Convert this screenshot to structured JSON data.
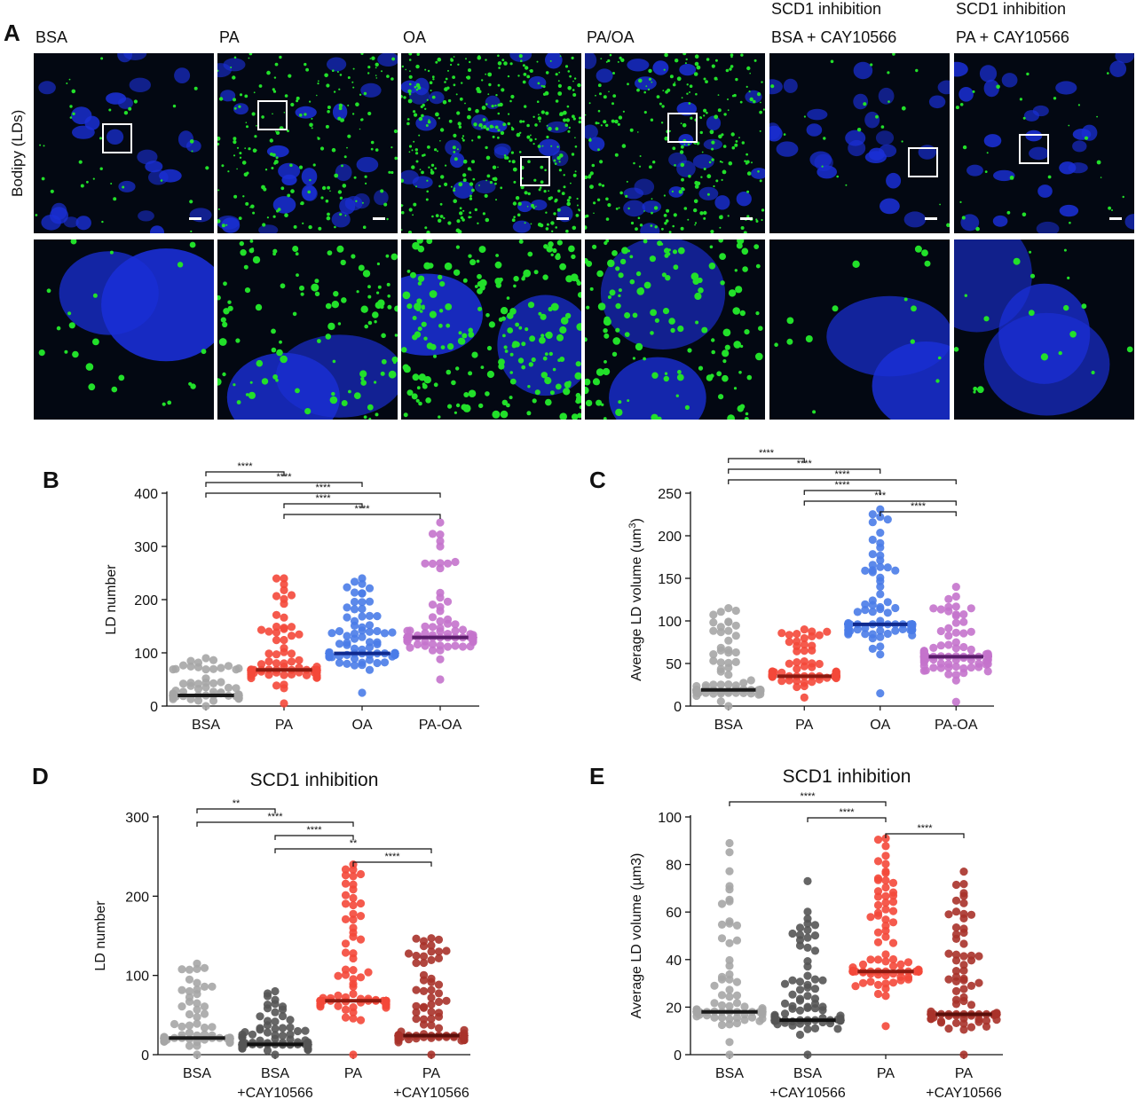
{
  "panel_A": {
    "letter": "A",
    "row_label": "Bodipy (LDs)",
    "columns": [
      {
        "line1": "",
        "line2": "BSA",
        "density": 0.08,
        "roi": [
          0.38,
          0.39
        ]
      },
      {
        "line1": "",
        "line2": "PA",
        "density": 0.45,
        "roi": [
          0.22,
          0.26
        ]
      },
      {
        "line1": "",
        "line2": "OA",
        "density": 0.9,
        "roi": [
          0.66,
          0.57
        ]
      },
      {
        "line1": "",
        "line2": "PA/OA",
        "density": 0.6,
        "roi": [
          0.46,
          0.33
        ]
      },
      {
        "line1": "SCD1 inhibition",
        "line2": "BSA + CAY10566",
        "density": 0.05,
        "roi": [
          0.77,
          0.52
        ]
      },
      {
        "line1": "SCD1 inhibition",
        "line2": "PA + CAY10566",
        "density": 0.07,
        "roi": [
          0.36,
          0.45
        ]
      }
    ],
    "colors": {
      "nucleus": "#1a2fd6",
      "lipid": "#22e02a",
      "background": "#030812"
    }
  },
  "chart_data": [
    {
      "panel": "B",
      "type": "scatter",
      "title": "",
      "ylabel": "LD number",
      "ylim": [
        0,
        400
      ],
      "yticks": [
        0,
        100,
        200,
        300,
        400
      ],
      "categories": [
        "BSA",
        "PA",
        "OA",
        "PA-OA"
      ],
      "series": [
        {
          "mean": 20,
          "min": 0,
          "max": 90,
          "n": 90,
          "color": "#a6a6a6",
          "bar_color": "#1a1a1a"
        },
        {
          "mean": 68,
          "min": 5,
          "max": 240,
          "n": 90,
          "color": "#f4483a",
          "bar_color": "#8b1a10"
        },
        {
          "mean": 99,
          "min": 25,
          "max": 240,
          "n": 90,
          "color": "#4a7ce8",
          "bar_color": "#0f2a8f"
        },
        {
          "mean": 129,
          "min": 50,
          "max": 345,
          "n": 90,
          "color": "#c473cc",
          "bar_color": "#5a1d6b"
        }
      ],
      "brackets": [
        {
          "from": 0,
          "to": 1,
          "label": "****"
        },
        {
          "from": 0,
          "to": 2,
          "label": "****"
        },
        {
          "from": 0,
          "to": 3,
          "label": "****"
        },
        {
          "from": 1,
          "to": 2,
          "label": "****"
        },
        {
          "from": 1,
          "to": 3,
          "label": "****"
        }
      ]
    },
    {
      "panel": "C",
      "type": "scatter",
      "title": "",
      "ylabel": "Average LD volume (um",
      "ylabel_sup": "3",
      "ylabel_end": ")",
      "ylim": [
        0,
        250
      ],
      "yticks": [
        0,
        50,
        100,
        150,
        200,
        250
      ],
      "categories": [
        "BSA",
        "PA",
        "OA",
        "PA-OA"
      ],
      "series": [
        {
          "mean": 19,
          "min": 0,
          "max": 115,
          "n": 90,
          "color": "#a6a6a6",
          "bar_color": "#1a1a1a"
        },
        {
          "mean": 35,
          "min": 10,
          "max": 90,
          "n": 90,
          "color": "#f4483a",
          "bar_color": "#8b1a10"
        },
        {
          "mean": 96,
          "min": 15,
          "max": 231,
          "n": 90,
          "color": "#4a7ce8",
          "bar_color": "#0f2a8f"
        },
        {
          "mean": 58,
          "min": 5,
          "max": 140,
          "n": 90,
          "color": "#c473cc",
          "bar_color": "#5a1d6b"
        }
      ],
      "brackets": [
        {
          "from": 0,
          "to": 1,
          "label": "****"
        },
        {
          "from": 0,
          "to": 2,
          "label": "****"
        },
        {
          "from": 0,
          "to": 3,
          "label": "****"
        },
        {
          "from": 1,
          "to": 2,
          "label": "****"
        },
        {
          "from": 1,
          "to": 3,
          "label": "***"
        },
        {
          "from": 2,
          "to": 3,
          "label": "****"
        }
      ]
    },
    {
      "panel": "D",
      "type": "scatter",
      "title": "SCD1 inhibition",
      "ylabel": "LD number",
      "ylim": [
        0,
        300
      ],
      "yticks": [
        0,
        100,
        200,
        300
      ],
      "categories": [
        "BSA",
        "BSA\n+CAY10566",
        "PA",
        "PA\n+CAY10566"
      ],
      "series": [
        {
          "mean": 21,
          "min": 0,
          "max": 115,
          "n": 90,
          "color": "#a6a6a6",
          "bar_color": "#1a1a1a"
        },
        {
          "mean": 13,
          "min": 0,
          "max": 80,
          "n": 90,
          "color": "#555555",
          "bar_color": "#111111"
        },
        {
          "mean": 68,
          "min": 0,
          "max": 240,
          "n": 90,
          "color": "#f4483a",
          "bar_color": "#8b1a10"
        },
        {
          "mean": 24,
          "min": 0,
          "max": 147,
          "n": 90,
          "color": "#a8322a",
          "bar_color": "#5a0f0a"
        }
      ],
      "brackets": [
        {
          "from": 0,
          "to": 1,
          "label": "**"
        },
        {
          "from": 0,
          "to": 2,
          "label": "****"
        },
        {
          "from": 1,
          "to": 2,
          "label": "****"
        },
        {
          "from": 1,
          "to": 3,
          "label": "**"
        },
        {
          "from": 2,
          "to": 3,
          "label": "****"
        }
      ]
    },
    {
      "panel": "E",
      "type": "scatter",
      "title": "SCD1 inhibition",
      "ylabel": "Average LD volume (µm3)",
      "ylim": [
        0,
        100
      ],
      "yticks": [
        0,
        20,
        40,
        60,
        80,
        100
      ],
      "categories": [
        "BSA",
        "BSA\n+CAY10566",
        "PA",
        "PA\n+CAY10566"
      ],
      "series": [
        {
          "mean": 18,
          "min": 0,
          "max": 89,
          "n": 90,
          "color": "#a6a6a6",
          "bar_color": "#1a1a1a"
        },
        {
          "mean": 14.5,
          "min": 0,
          "max": 73,
          "n": 90,
          "color": "#555555",
          "bar_color": "#111111"
        },
        {
          "mean": 35,
          "min": 12,
          "max": 91,
          "n": 90,
          "color": "#f4483a",
          "bar_color": "#8b1a10"
        },
        {
          "mean": 17,
          "min": 0,
          "max": 77,
          "n": 90,
          "color": "#a8322a",
          "bar_color": "#5a0f0a"
        }
      ],
      "brackets": [
        {
          "from": 0,
          "to": 2,
          "label": "****"
        },
        {
          "from": 1,
          "to": 2,
          "label": "****"
        },
        {
          "from": 2,
          "to": 3,
          "label": "****"
        }
      ]
    }
  ]
}
